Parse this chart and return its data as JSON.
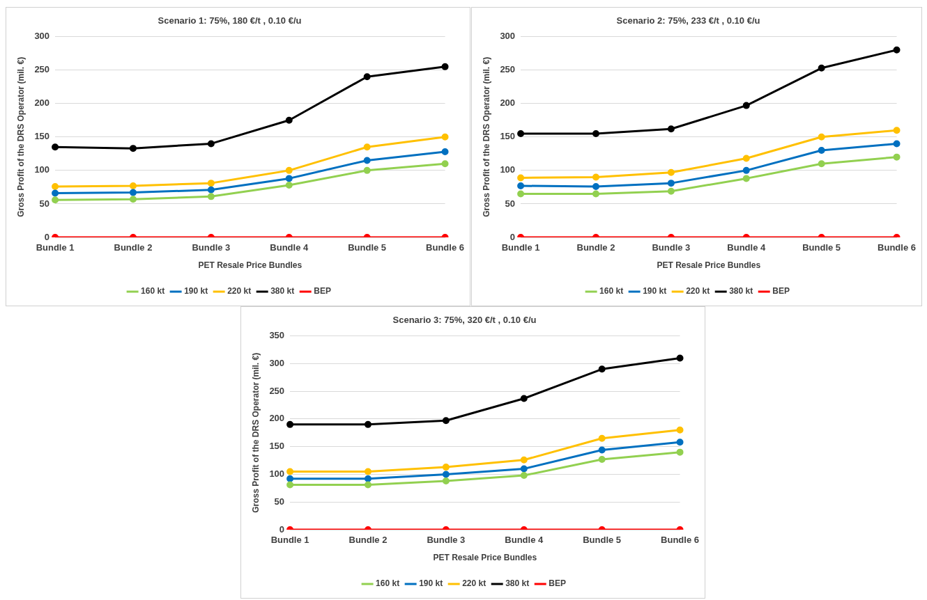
{
  "chart_data": [
    {
      "type": "line",
      "title": "Scenario 1: 75%, 180 €/t , 0.10 €/u",
      "xlabel": "PET Resale Price Bundles",
      "ylabel": "Gross Profit of the DRS Operator (mil. €)",
      "categories": [
        "Bundle 1",
        "Bundle 2",
        "Bundle 3",
        "Bundle 4",
        "Bundle 5",
        "Bundle 6"
      ],
      "ylim": [
        0,
        300
      ],
      "yticks": [
        0,
        50,
        100,
        150,
        200,
        250,
        300
      ],
      "grid": "y",
      "legend": "bottom",
      "marker": "circle",
      "series": [
        {
          "name": "160 kt",
          "color": "#92d050",
          "values": [
            56,
            57,
            61,
            78,
            100,
            110
          ]
        },
        {
          "name": "190 kt",
          "color": "#0070c0",
          "values": [
            66,
            67,
            71,
            88,
            115,
            128
          ]
        },
        {
          "name": "220 kt",
          "color": "#ffc000",
          "values": [
            76,
            77,
            81,
            100,
            135,
            150
          ]
        },
        {
          "name": "380 kt",
          "color": "#000000",
          "values": [
            135,
            133,
            140,
            175,
            240,
            255
          ]
        },
        {
          "name": "BEP",
          "color": "#ff0000",
          "values": [
            0,
            0,
            0,
            0,
            0,
            0
          ]
        }
      ]
    },
    {
      "type": "line",
      "title": "Scenario 2: 75%, 233 €/t , 0.10 €/u",
      "xlabel": "PET Resale Price Bundles",
      "ylabel": "Gross Profit of the DRS Operator (mil. €)",
      "categories": [
        "Bundle 1",
        "Bundle 2",
        "Bundle 3",
        "Bundle 4",
        "Bundle 5",
        "Bundle 6"
      ],
      "ylim": [
        0,
        300
      ],
      "yticks": [
        0,
        50,
        100,
        150,
        200,
        250,
        300
      ],
      "grid": "y",
      "legend": "bottom",
      "marker": "circle",
      "series": [
        {
          "name": "160 kt",
          "color": "#92d050",
          "values": [
            65,
            65,
            69,
            88,
            110,
            120
          ]
        },
        {
          "name": "190 kt",
          "color": "#0070c0",
          "values": [
            77,
            76,
            81,
            100,
            130,
            140
          ]
        },
        {
          "name": "220 kt",
          "color": "#ffc000",
          "values": [
            89,
            90,
            97,
            118,
            150,
            160
          ]
        },
        {
          "name": "380 kt",
          "color": "#000000",
          "values": [
            155,
            155,
            162,
            197,
            253,
            280
          ]
        },
        {
          "name": "BEP",
          "color": "#ff0000",
          "values": [
            0,
            0,
            0,
            0,
            0,
            0
          ]
        }
      ]
    },
    {
      "type": "line",
      "title": "Scenario 3: 75%, 320 €/t , 0.10 €/u",
      "xlabel": "PET Resale Price Bundles",
      "ylabel": "Gross Profit of the DRS Operator (mil. €)",
      "categories": [
        "Bundle 1",
        "Bundle 2",
        "Bundle 3",
        "Bundle 4",
        "Bundle 5",
        "Bundle 6"
      ],
      "ylim": [
        0,
        350
      ],
      "yticks": [
        0,
        50,
        100,
        150,
        200,
        250,
        300,
        350
      ],
      "grid": "y",
      "legend": "bottom",
      "marker": "circle",
      "series": [
        {
          "name": "160 kt",
          "color": "#92d050",
          "values": [
            81,
            81,
            88,
            98,
            127,
            140
          ]
        },
        {
          "name": "190 kt",
          "color": "#0070c0",
          "values": [
            92,
            92,
            100,
            110,
            144,
            158
          ]
        },
        {
          "name": "220 kt",
          "color": "#ffc000",
          "values": [
            105,
            105,
            113,
            126,
            165,
            180
          ]
        },
        {
          "name": "380 kt",
          "color": "#000000",
          "values": [
            190,
            190,
            197,
            237,
            290,
            310
          ]
        },
        {
          "name": "BEP",
          "color": "#ff0000",
          "values": [
            0,
            0,
            0,
            0,
            0,
            0
          ]
        }
      ]
    }
  ]
}
